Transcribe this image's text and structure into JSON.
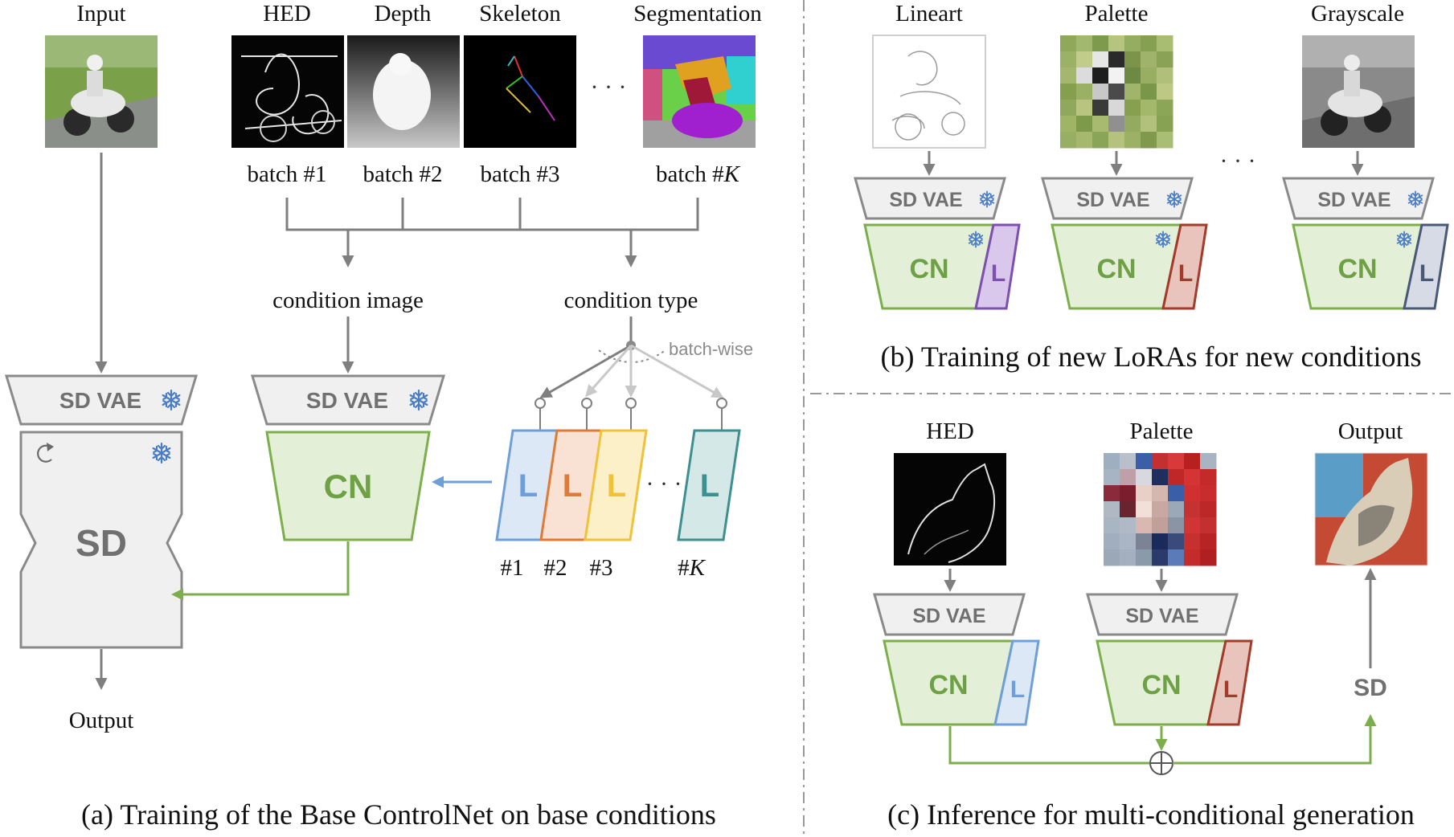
{
  "panel_a": {
    "input_label": "Input",
    "output_label": "Output",
    "hed_label": "HED",
    "depth_label": "Depth",
    "skeleton_label": "Skeleton",
    "segmentation_label": "Segmentation",
    "batch1": "batch #1",
    "batch2": "batch #2",
    "batch3": "batch #3",
    "batchK_prefix": "batch #",
    "batchK_var": "K",
    "condition_image": "condition image",
    "condition_type": "condition type",
    "batch_wise": "batch-wise",
    "sd_vae": "SD VAE",
    "sd_vae_cond": "SD VAE",
    "sd": "SD",
    "cn": "CN",
    "lora_letter": "L",
    "lora1": "#1",
    "lora2": "#2",
    "lora3": "#3",
    "loraK_prefix": "#",
    "loraK_var": "K",
    "ellipsis": "· · ·",
    "caption": "(a) Training of the Base ControlNet on base conditions"
  },
  "panel_b": {
    "lineart_label": "Lineart",
    "palette_label": "Palette",
    "grayscale_label": "Grayscale",
    "sd_vae": "SD VAE",
    "cn": "CN",
    "lora_letter": "L",
    "ellipsis": "· · ·",
    "caption": "(b) Training of new LoRAs for new conditions"
  },
  "panel_c": {
    "hed_label": "HED",
    "palette_label": "Palette",
    "output_label": "Output",
    "sd_vae": "SD VAE",
    "cn": "CN",
    "lora_letter": "L",
    "sd": "SD",
    "sum_symbol": "⊕",
    "caption": "(c) Inference for multi-conditional generation"
  },
  "colors": {
    "lora_blue": "#6f9fd8",
    "lora_orange": "#e07a36",
    "lora_yellow": "#f0c23a",
    "lora_teal": "#3e8f8f",
    "lora_purple": "#7d4fb0",
    "lora_red": "#a33a2a",
    "lora_slate": "#4a5878",
    "cn_green": "#7cae4c",
    "frozen_blue": "#4a7dc6"
  }
}
